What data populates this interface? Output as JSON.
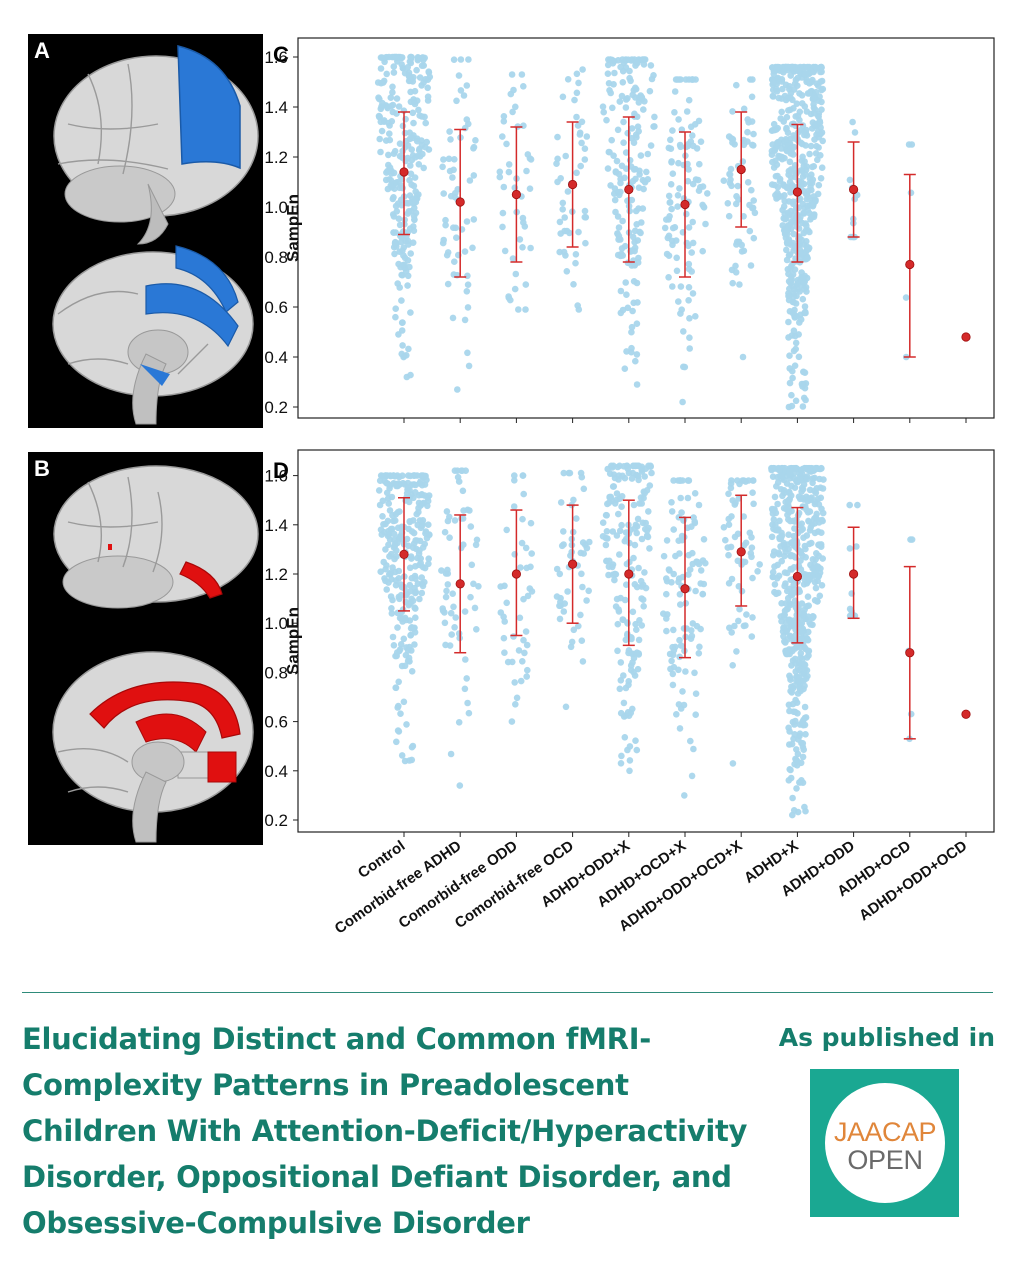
{
  "panels": {
    "a_letter": "A",
    "b_letter": "B",
    "c_letter": "C",
    "d_letter": "D"
  },
  "headline": "Elucidating Distinct and Common fMRI-Complexity Patterns in Preadolescent Children With Attention-Deficit/Hyperactivity Disorder, Oppositional Defiant Disorder, and Obsessive-Compulsive Disorder",
  "headline_lines": [
    "Elucidating Distinct and Common fMRI-",
    "Complexity Patterns in Preadolescent",
    "Children With Attention-Deficit/Hyperactivity",
    "Disorder, Oppositional Defiant Disorder, and",
    "Obsessive-Compulsive Disorder"
  ],
  "published_label": "As published in",
  "journal_logo": {
    "top": "JAACAP",
    "bottom": "OPEN"
  },
  "colors": {
    "accent": "#157d6c",
    "logo_bg": "#1aa892",
    "points": "#a9d6ec",
    "error_bars": "#d42a2a",
    "brain_highlight_a": "#2a78d6",
    "brain_highlight_b": "#e01010"
  },
  "chart_data": [
    {
      "type": "scatter",
      "panel": "C",
      "ylabel": "SampEn",
      "ylim": [
        0.15,
        1.65
      ],
      "yticks": [
        0.2,
        0.4,
        0.6,
        0.8,
        1.0,
        1.2,
        1.4,
        1.6
      ],
      "categories": [
        "Control",
        "Comorbid-free ADHD",
        "Comorbid-free ODD",
        "Comorbid-free OCD",
        "ADHD+ODD+X",
        "ADHD+OCD+X",
        "ADHD+ODD+OCD+X",
        "ADHD+X",
        "ADHD+ODD",
        "ADHD+OCD",
        "ADHD+ODD+OCD"
      ],
      "mean": [
        1.14,
        1.02,
        1.05,
        1.09,
        1.07,
        1.01,
        1.15,
        1.06,
        1.07,
        0.77,
        0.48
      ],
      "sd_low": [
        0.89,
        0.72,
        0.78,
        0.84,
        0.78,
        0.72,
        0.92,
        0.78,
        0.88,
        0.4,
        null
      ],
      "sd_high": [
        1.38,
        1.31,
        1.32,
        1.34,
        1.36,
        1.3,
        1.38,
        1.33,
        1.26,
        1.13,
        null
      ],
      "point_min": [
        0.32,
        0.27,
        0.59,
        0.59,
        0.29,
        0.22,
        0.4,
        0.2,
        0.88,
        0.4,
        0.48
      ],
      "point_max": [
        1.6,
        1.59,
        1.53,
        1.55,
        1.59,
        1.51,
        1.51,
        1.56,
        1.34,
        1.25,
        0.48
      ],
      "point_counts": [
        280,
        60,
        45,
        50,
        190,
        110,
        60,
        520,
        12,
        5,
        1
      ]
    },
    {
      "type": "scatter",
      "panel": "D",
      "ylabel": "SampEn",
      "ylim": [
        0.15,
        1.7
      ],
      "yticks": [
        0.2,
        0.4,
        0.6,
        0.8,
        1.0,
        1.2,
        1.4,
        1.6
      ],
      "categories": [
        "Control",
        "Comorbid-free ADHD",
        "Comorbid-free ODD",
        "Comorbid-free OCD",
        "ADHD+ODD+X",
        "ADHD+OCD+X",
        "ADHD+ODD+OCD+X",
        "ADHD+X",
        "ADHD+ODD",
        "ADHD+OCD",
        "ADHD+ODD+OCD"
      ],
      "mean": [
        1.28,
        1.16,
        1.2,
        1.24,
        1.2,
        1.14,
        1.29,
        1.19,
        1.2,
        0.88,
        0.63
      ],
      "sd_low": [
        1.05,
        0.88,
        0.95,
        1.0,
        0.91,
        0.86,
        1.07,
        0.92,
        1.02,
        0.53,
        null
      ],
      "sd_high": [
        1.51,
        1.44,
        1.46,
        1.48,
        1.5,
        1.43,
        1.52,
        1.47,
        1.39,
        1.23,
        null
      ],
      "point_min": [
        0.44,
        0.34,
        0.6,
        0.66,
        0.4,
        0.3,
        0.43,
        0.22,
        1.03,
        0.53,
        0.63
      ],
      "point_max": [
        1.6,
        1.62,
        1.6,
        1.61,
        1.64,
        1.58,
        1.58,
        1.63,
        1.48,
        1.34,
        0.63
      ],
      "point_counts": [
        280,
        60,
        45,
        50,
        190,
        110,
        60,
        520,
        12,
        5,
        1
      ]
    }
  ]
}
